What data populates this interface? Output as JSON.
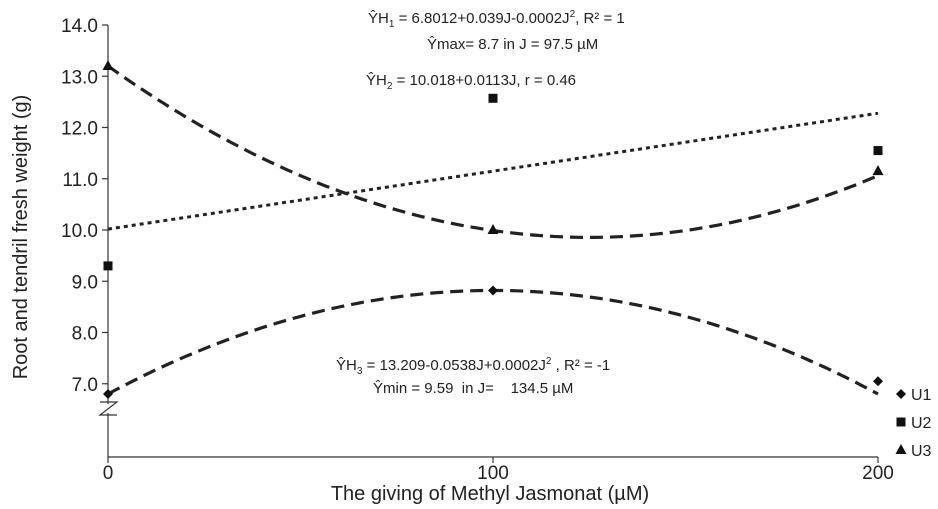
{
  "chart_data": {
    "type": "line",
    "title": "",
    "xlabel": "The giving of Methyl Jasmonat (µM)",
    "ylabel": "Root and tendril fresh weight (g)",
    "xlim": [
      0,
      200
    ],
    "ylim": [
      6.0,
      14.0
    ],
    "x_ticks": [
      "0",
      "100",
      "200"
    ],
    "y_ticks": [
      "7.0",
      "8.0",
      "9.0",
      "10.0",
      "11.0",
      "12.0",
      "13.0",
      "14.0"
    ],
    "axis_break": true,
    "grid": false,
    "legend_position": "right",
    "series": [
      {
        "name": "U1",
        "marker": "diamond",
        "x": [
          0,
          100,
          200
        ],
        "values": [
          6.8,
          8.82,
          7.05
        ],
        "trend": {
          "type": "quadratic",
          "style": "dashed",
          "equation": [
            "ŶH",
            "3",
            " = 13.209-0.0538J+0.0002J",
            "2",
            " , R² = -1"
          ],
          "extreme": "Ŷmin = 9.59  in J=    134.5 µM",
          "curve_coeffs": [
            6.8,
            0.0404,
            -0.000202
          ]
        }
      },
      {
        "name": "U2",
        "marker": "square",
        "x": [
          0,
          100,
          200
        ],
        "values": [
          9.3,
          12.57,
          11.55
        ],
        "trend": {
          "type": "linear",
          "style": "dotted",
          "equation": [
            "ŶH",
            "2",
            " = 10.018+0.0113J, r = 0.46"
          ],
          "curve_coeffs": [
            10.018,
            0.0113,
            0
          ]
        }
      },
      {
        "name": "U3",
        "marker": "triangle",
        "x": [
          0,
          100,
          200
        ],
        "values": [
          13.2,
          10.0,
          11.15
        ],
        "trend": {
          "type": "quadratic",
          "style": "dashed",
          "equation": [
            "ŶH",
            "1",
            " = 6.8012+0.039J-0.0002J",
            "2",
            ", R² = 1"
          ],
          "extreme": "Ŷmax= 8.7 in J = 97.5 µM",
          "curve_coeffs": [
            13.2,
            -0.0535,
            0.000214
          ]
        }
      }
    ]
  }
}
